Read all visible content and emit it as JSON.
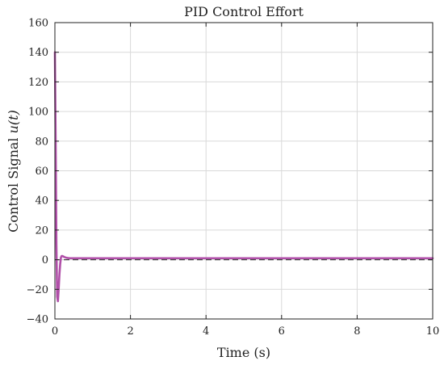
{
  "chart_data": {
    "type": "line",
    "title": "PID Control Effort",
    "xlabel": "Time (s)",
    "ylabel_prefix": "Control Signal ",
    "ylabel_var": "u(t)",
    "xlim": [
      0,
      10
    ],
    "ylim": [
      -40,
      160
    ],
    "xticks": [
      0,
      2,
      4,
      6,
      8,
      10
    ],
    "yticks": [
      -40,
      -20,
      0,
      20,
      40,
      60,
      80,
      100,
      120,
      140,
      160
    ],
    "grid": true,
    "reference_line": {
      "y": 0,
      "style": "dashed",
      "color": "#444444"
    },
    "series": [
      {
        "color": "#b04fa8",
        "x": [
          0,
          0.02,
          0.04,
          0.06,
          0.08,
          0.1,
          0.12,
          0.14,
          0.16,
          0.18,
          0.2,
          0.22,
          0.25,
          0.3,
          0.35,
          0.4,
          0.5,
          0.7,
          1.0,
          2.0,
          4.0,
          6.0,
          8.0,
          10.0
        ],
        "y": [
          140,
          80,
          10,
          -25,
          -28,
          -20,
          -10,
          -3,
          1.5,
          2.5,
          2.5,
          2.2,
          1.8,
          1.3,
          1.1,
          1.0,
          1.0,
          1.0,
          1.0,
          1.0,
          1.0,
          1.0,
          1.0,
          1.0
        ]
      }
    ]
  }
}
